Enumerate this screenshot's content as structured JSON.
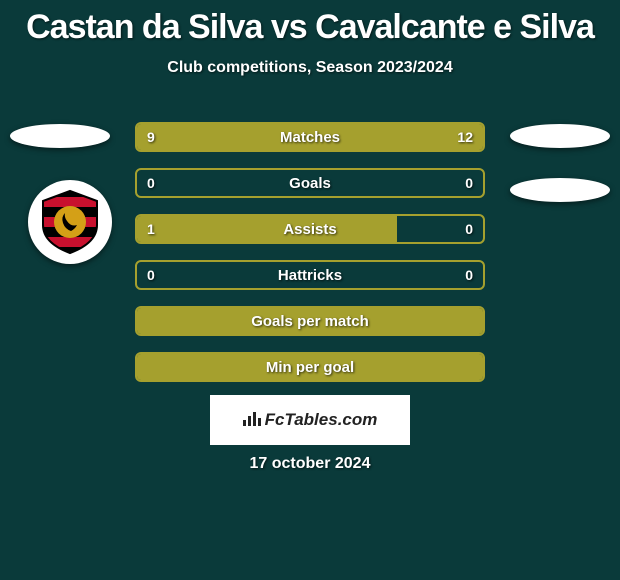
{
  "title": "Castan da Silva vs Cavalcante e Silva",
  "subtitle": "Club competitions, Season 2023/2024",
  "date": "17 october 2024",
  "footer_brand": "FcTables.com",
  "colors": {
    "background": "#0a3a3a",
    "bar_border": "#a5a02e",
    "bar_fill": "#a5a02e",
    "bar_empty": "transparent",
    "text": "#ffffff",
    "ellipse": "#ffffff",
    "badge_bg": "#ffffff",
    "badge_stripe": "#000000",
    "badge_red": "#c8102e",
    "badge_gold": "#d4a017"
  },
  "bars": [
    {
      "label": "Matches",
      "left_val": "9",
      "right_val": "12",
      "left_pct": 40,
      "right_pct": 60
    },
    {
      "label": "Goals",
      "left_val": "0",
      "right_val": "0",
      "left_pct": 0,
      "right_pct": 0
    },
    {
      "label": "Assists",
      "left_val": "1",
      "right_val": "0",
      "left_pct": 75,
      "right_pct": 0
    },
    {
      "label": "Hattricks",
      "left_val": "0",
      "right_val": "0",
      "left_pct": 0,
      "right_pct": 0
    },
    {
      "label": "Goals per match",
      "left_val": "",
      "right_val": "",
      "left_pct": 100,
      "right_pct": 0
    },
    {
      "label": "Min per goal",
      "left_val": "",
      "right_val": "",
      "left_pct": 100,
      "right_pct": 0
    }
  ]
}
